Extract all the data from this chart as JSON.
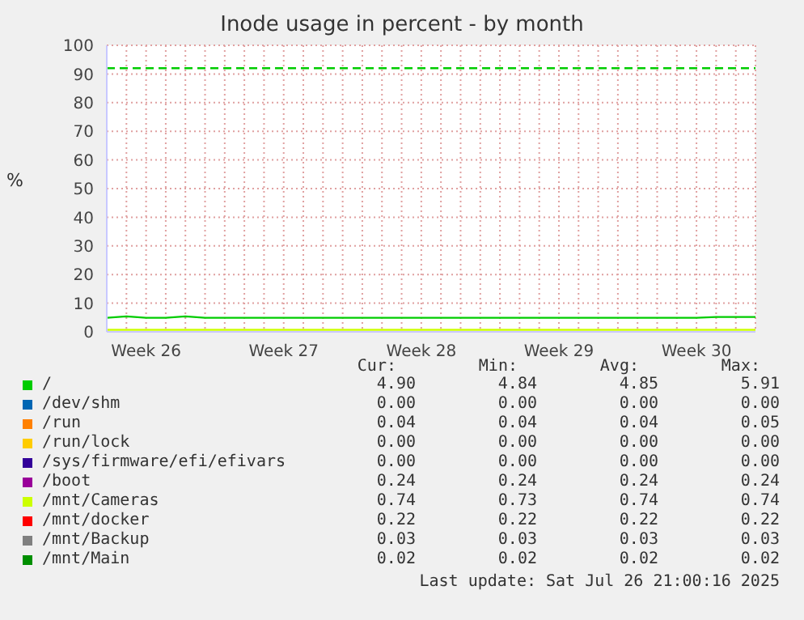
{
  "chart_data": {
    "type": "line",
    "title": "Inode usage in percent - by month",
    "ylabel": "%",
    "categories": [
      null,
      null,
      "Week 26",
      null,
      null,
      null,
      null,
      null,
      null,
      "Week 27",
      null,
      null,
      null,
      null,
      null,
      null,
      "Week 28",
      null,
      null,
      null,
      null,
      null,
      null,
      "Week 29",
      null,
      null,
      null,
      null,
      null,
      null,
      "Week 30",
      null,
      null,
      null
    ],
    "ylim": [
      0,
      100
    ],
    "yticks": [
      0,
      10,
      20,
      30,
      40,
      50,
      60,
      70,
      80,
      90,
      100
    ],
    "grid": true,
    "legend": "bottom",
    "series": [
      {
        "name": "/",
        "color": "#00cc00",
        "values": [
          4.9,
          5.4,
          4.9,
          4.9,
          5.4,
          4.9,
          4.9,
          4.9,
          4.9,
          4.9,
          4.9,
          4.9,
          4.9,
          4.9,
          4.9,
          4.9,
          4.9,
          4.9,
          4.9,
          4.9,
          4.9,
          4.9,
          4.9,
          4.9,
          4.9,
          4.9,
          4.9,
          4.9,
          4.9,
          4.9,
          4.9,
          5.2,
          5.2,
          5.2
        ]
      },
      {
        "name": "/dev/shm",
        "color": "#0066b3",
        "values": [
          null,
          null,
          null,
          null,
          null,
          null,
          null,
          null,
          null,
          null,
          null,
          null,
          null,
          null,
          null,
          null,
          null,
          null,
          null,
          null,
          null,
          null,
          null,
          null,
          null,
          null,
          null,
          null,
          null,
          null,
          null,
          null,
          null,
          null
        ]
      },
      {
        "name": "/run",
        "color": "#ff8000",
        "values": [
          null,
          null,
          null,
          null,
          null,
          null,
          null,
          null,
          null,
          null,
          null,
          null,
          null,
          null,
          null,
          null,
          null,
          null,
          null,
          null,
          null,
          null,
          null,
          null,
          null,
          null,
          null,
          null,
          null,
          null,
          null,
          null,
          null,
          null
        ]
      },
      {
        "name": "/run/lock",
        "color": "#ffcc00",
        "values": [
          null,
          null,
          null,
          null,
          null,
          null,
          null,
          null,
          null,
          null,
          null,
          null,
          null,
          null,
          null,
          null,
          null,
          null,
          null,
          null,
          null,
          null,
          null,
          null,
          null,
          null,
          null,
          null,
          null,
          null,
          null,
          null,
          null,
          null
        ]
      },
      {
        "name": "/sys/firmware/efi/efivars",
        "color": "#330099",
        "values": [
          null,
          null,
          null,
          null,
          null,
          null,
          null,
          null,
          null,
          null,
          null,
          null,
          null,
          null,
          null,
          null,
          null,
          null,
          null,
          null,
          null,
          null,
          null,
          null,
          null,
          null,
          null,
          null,
          null,
          null,
          null,
          null,
          null,
          null
        ]
      },
      {
        "name": "/boot",
        "color": "#990099",
        "values": [
          null,
          null,
          null,
          null,
          null,
          null,
          null,
          null,
          null,
          null,
          null,
          null,
          null,
          null,
          null,
          null,
          null,
          null,
          null,
          null,
          null,
          null,
          null,
          null,
          null,
          null,
          null,
          null,
          null,
          null,
          null,
          null,
          null,
          null
        ]
      },
      {
        "name": "/mnt/Cameras",
        "color": "#ccff00",
        "values": [
          0.7,
          0.7,
          0.7,
          0.7,
          0.7,
          0.7,
          0.7,
          0.7,
          0.7,
          0.7,
          0.7,
          0.7,
          0.7,
          0.7,
          0.7,
          0.7,
          0.7,
          0.7,
          0.7,
          0.7,
          0.7,
          0.7,
          0.7,
          0.7,
          0.7,
          0.7,
          0.7,
          0.7,
          0.7,
          0.7,
          0.7,
          0.7,
          0.7,
          0.7
        ]
      },
      {
        "name": "/mnt/docker",
        "color": "#ff0000",
        "values": [
          null,
          null,
          null,
          null,
          null,
          null,
          null,
          null,
          null,
          null,
          null,
          null,
          null,
          null,
          null,
          null,
          null,
          null,
          null,
          null,
          null,
          null,
          null,
          null,
          null,
          null,
          null,
          null,
          null,
          null,
          null,
          null,
          null,
          null
        ]
      },
      {
        "name": "/mnt/Backup",
        "color": "#808080",
        "values": [
          null,
          null,
          null,
          null,
          null,
          null,
          null,
          null,
          null,
          null,
          null,
          null,
          null,
          null,
          null,
          null,
          null,
          null,
          null,
          null,
          null,
          null,
          null,
          null,
          null,
          null,
          null,
          null,
          null,
          null,
          null,
          null,
          null,
          null
        ]
      },
      {
        "name": "/mnt/Main",
        "color": "#008f00",
        "values": [
          null,
          null,
          null,
          null,
          null,
          null,
          null,
          null,
          null,
          null,
          null,
          null,
          null,
          null,
          null,
          null,
          null,
          null,
          null,
          null,
          null,
          null,
          null,
          null,
          null,
          null,
          null,
          null,
          null,
          null,
          null,
          null,
          null,
          null
        ]
      }
    ],
    "ref_lines": [
      {
        "axis": "y",
        "value": 92,
        "color": "#00cc00",
        "line_style": "dashed"
      }
    ],
    "annotations": [
      "Cur:",
      "Min:",
      "Avg:",
      "Max:",
      "4.90",
      "4.84",
      "4.85",
      "5.91",
      "0.00",
      "0.00",
      "0.00",
      "0.00",
      "0.04",
      "0.04",
      "0.04",
      "0.05",
      "0.00",
      "0.00",
      "0.00",
      "0.00",
      "0.00",
      "0.00",
      "0.00",
      "0.00",
      "0.24",
      "0.24",
      "0.24",
      "0.24",
      "0.74",
      "0.73",
      "0.74",
      "0.74",
      "0.22",
      "0.22",
      "0.22",
      "0.22",
      "0.03",
      "0.03",
      "0.03",
      "0.03",
      "0.02",
      "0.02",
      "0.02",
      "0.02",
      "Last update: Sat Jul 26 21:00:16 2025"
    ]
  }
}
